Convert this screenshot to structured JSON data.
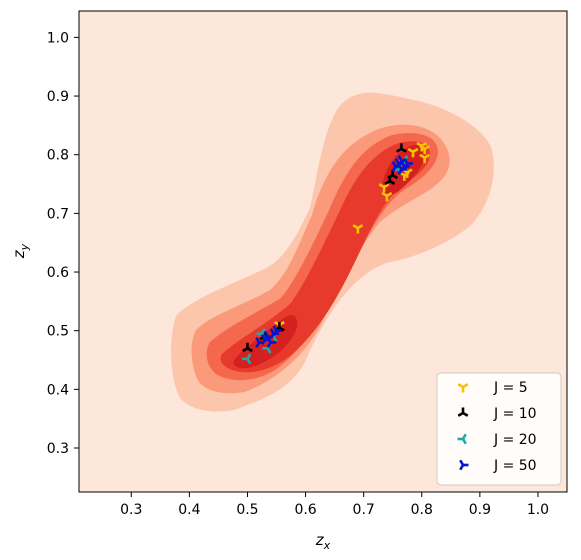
{
  "chart_data": {
    "type": "scatter",
    "title": "",
    "xlabel_main": "z",
    "xlabel_sub": "x",
    "ylabel_main": "z",
    "ylabel_sub": "y",
    "xlim": [
      0.21,
      1.05
    ],
    "ylim": [
      0.225,
      1.045
    ],
    "xticks": [
      0.3,
      0.4,
      0.5,
      0.6,
      0.7,
      0.8,
      0.9,
      1.0
    ],
    "yticks": [
      0.3,
      0.4,
      0.5,
      0.6,
      0.7,
      0.8,
      0.9,
      1.0
    ],
    "grid": false,
    "legend_position": "lower right",
    "background_color": "#fde6da",
    "density_contour_colors": [
      "#fcc6ad",
      "#fb9a7b",
      "#f4694d",
      "#e8392d",
      "#d4201f"
    ],
    "density_clusters": [
      {
        "center": [
          0.54,
          0.49
        ],
        "label": "lower cluster"
      },
      {
        "center": [
          0.77,
          0.78
        ],
        "label": "upper cluster"
      }
    ],
    "series": [
      {
        "name": "J = 5",
        "color": "#f5c400",
        "marker": "tri_down",
        "points": [
          [
            0.555,
            0.51
          ],
          [
            0.69,
            0.675
          ],
          [
            0.74,
            0.73
          ],
          [
            0.735,
            0.745
          ],
          [
            0.77,
            0.765
          ],
          [
            0.775,
            0.77
          ],
          [
            0.785,
            0.805
          ],
          [
            0.8,
            0.815
          ],
          [
            0.805,
            0.81
          ],
          [
            0.805,
            0.795
          ]
        ]
      },
      {
        "name": "J = 10",
        "color": "#000000",
        "marker": "tri_up",
        "points": [
          [
            0.5,
            0.47
          ],
          [
            0.53,
            0.49
          ],
          [
            0.555,
            0.505
          ],
          [
            0.745,
            0.755
          ],
          [
            0.75,
            0.765
          ],
          [
            0.765,
            0.81
          ]
        ]
      },
      {
        "name": "J = 20",
        "color": "#20a9a9",
        "marker": "tri_left",
        "points": [
          [
            0.5,
            0.452
          ],
          [
            0.525,
            0.495
          ],
          [
            0.535,
            0.47
          ],
          [
            0.545,
            0.49
          ],
          [
            0.76,
            0.775
          ],
          [
            0.77,
            0.79
          ]
        ]
      },
      {
        "name": "J = 50",
        "color": "#0a14d0",
        "marker": "tri_right",
        "points": [
          [
            0.52,
            0.48
          ],
          [
            0.53,
            0.485
          ],
          [
            0.54,
            0.48
          ],
          [
            0.545,
            0.495
          ],
          [
            0.55,
            0.5
          ],
          [
            0.535,
            0.49
          ],
          [
            0.755,
            0.78
          ],
          [
            0.76,
            0.785
          ],
          [
            0.765,
            0.79
          ],
          [
            0.77,
            0.78
          ],
          [
            0.775,
            0.785
          ],
          [
            0.765,
            0.775
          ]
        ]
      }
    ]
  }
}
